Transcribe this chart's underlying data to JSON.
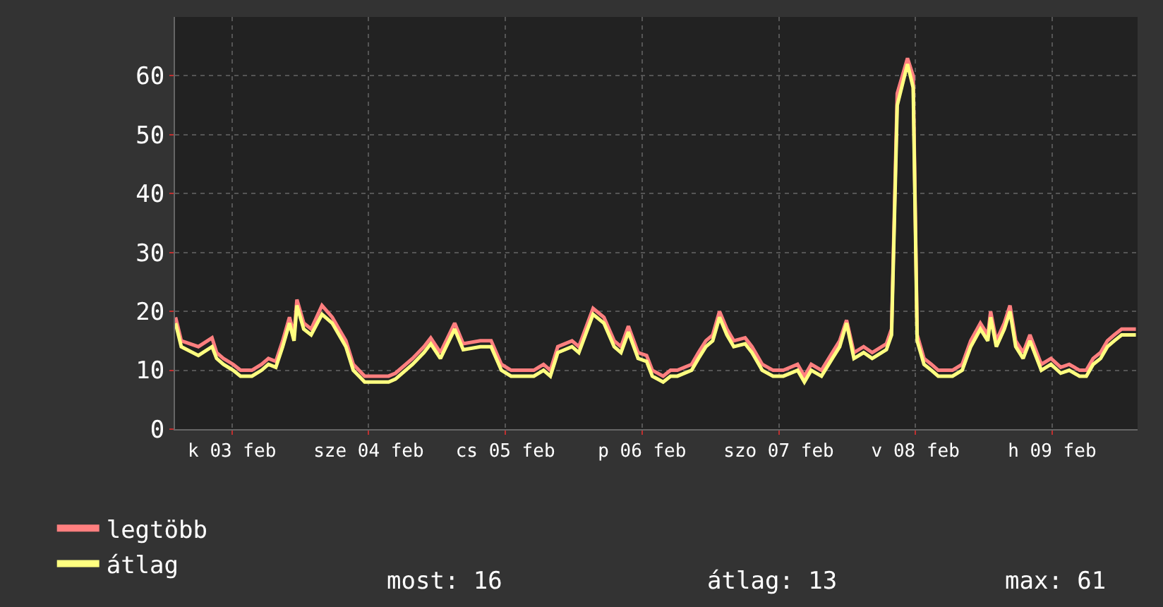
{
  "chart_data": {
    "type": "line",
    "x": [
      "--02-02T14:06",
      "--02-02T15:06",
      "--02-02T18:06",
      "--02-02T20:30",
      "--02-02T21:18",
      "--02-02T22:30",
      "--02-03T00:12",
      "--02-03T01:30",
      "--02-03T03:30",
      "--02-03T05:12",
      "--02-03T06:24",
      "--02-03T07:42",
      "--02-03T08:54",
      "--02-03T10:06",
      "--02-03T10:54",
      "--02-03T11:24",
      "--02-03T12:36",
      "--02-03T13:54",
      "--02-03T15:48",
      "--02-03T17:36",
      "--02-03T18:48",
      "--02-03T20:00",
      "--02-03T21:18",
      "--02-03T23:18",
      "--02-04T03:30",
      "--02-04T04:42",
      "--02-04T07:42",
      "--02-04T09:42",
      "--02-04T10:54",
      "--02-04T12:36",
      "--02-04T15:06",
      "--02-04T16:36",
      "--02-04T19:36",
      "--02-04T21:30",
      "--02-04T23:18",
      "--02-05T01:00",
      "--02-05T05:00",
      "--02-05T06:42",
      "--02-05T07:54",
      "--02-05T09:12",
      "--02-05T11:42",
      "--02-05T12:54",
      "--02-05T15:24",
      "--02-05T17:18",
      "--02-05T19:06",
      "--02-05T20:18",
      "--02-05T21:36",
      "--02-05T23:18",
      "--02-06T00:48",
      "--02-06T01:48",
      "--02-06T03:42",
      "--02-06T05:00",
      "--02-06T06:12",
      "--02-06T08:42",
      "--02-06T09:54",
      "--02-06T11:12",
      "--02-06T12:24",
      "--02-06T13:36",
      "--02-06T14:54",
      "--02-06T16:06",
      "--02-06T18:06",
      "--02-06T19:18",
      "--02-06T21:06",
      "--02-06T23:00",
      "--02-07T00:48",
      "--02-07T03:18",
      "--02-07T04:30",
      "--02-07T05:42",
      "--02-07T07:30",
      "--02-07T09:24",
      "--02-07T10:42",
      "--02-07T11:54",
      "--02-07T13:12",
      "--02-07T14:54",
      "--02-07T16:24",
      "--02-07T18:54",
      "--02-07T19:48",
      "--02-07T20:48",
      "--02-07T22:36",
      "--02-07T23:36",
      "--02-08T00:18",
      "--02-08T01:30",
      "--02-08T02:48",
      "--02-08T04:00",
      "--02-08T06:30",
      "--02-08T08:12",
      "--02-08T09:42",
      "--02-08T11:24",
      "--02-08T12:42",
      "--02-08T13:12",
      "--02-08T14:12",
      "--02-08T15:36",
      "--02-08T16:36",
      "--02-08T17:36",
      "--02-08T18:54",
      "--02-08T20:06",
      "--02-08T22:06",
      "--02-08T23:48",
      "--02-09T01:30",
      "--02-09T03:00",
      "--02-09T04:48",
      "--02-09T06:00",
      "--02-09T07:12",
      "--02-09T08:30",
      "--02-09T09:42",
      "--02-09T10:54",
      "--02-09T12:12",
      "--02-09T14:42"
    ],
    "series": [
      {
        "name": "legtöbb",
        "color": "#ff7f7f",
        "values": [
          19,
          15,
          14,
          15.5,
          13,
          12,
          11,
          10,
          10,
          11,
          12,
          11.5,
          15,
          19,
          16,
          22,
          18,
          17,
          21,
          19,
          17,
          15,
          11,
          9,
          9,
          9.5,
          12,
          14,
          15.5,
          13,
          18,
          14.5,
          15,
          15,
          11,
          10,
          10,
          11,
          10,
          14,
          15,
          14,
          20.5,
          19,
          15,
          14,
          17.5,
          13,
          12.5,
          10,
          9,
          10,
          10,
          11,
          13,
          15,
          16,
          20,
          17,
          15,
          15.5,
          14,
          11,
          10,
          10,
          11,
          9,
          11,
          10,
          13,
          15,
          18.5,
          13,
          14,
          13,
          14.5,
          17,
          57,
          63,
          60,
          16,
          12,
          11,
          10,
          10,
          11,
          15,
          18,
          16,
          20,
          15,
          18,
          21,
          15,
          13,
          16,
          11,
          12,
          10.5,
          11,
          10,
          10,
          12,
          13,
          15,
          16,
          17,
          17
        ]
      },
      {
        "name": "átlag",
        "color": "#ffff80",
        "values": [
          18,
          14,
          12.5,
          14,
          12,
          11,
          10,
          9,
          9,
          10,
          11,
          10.5,
          14,
          18,
          15,
          21,
          17,
          16,
          19.5,
          18,
          16,
          14,
          10,
          8,
          8,
          8.5,
          11,
          13,
          14.5,
          12,
          17,
          13.5,
          14,
          14,
          10,
          9,
          9,
          10,
          9,
          13,
          14,
          13,
          19.5,
          18,
          14,
          13,
          16.5,
          12,
          11.5,
          9,
          8,
          9,
          9,
          10,
          12,
          14,
          15,
          19,
          16,
          14,
          14.5,
          13,
          10,
          9,
          9,
          10,
          8,
          10,
          9,
          12,
          14,
          18,
          12,
          13,
          12,
          13.5,
          16,
          55,
          62,
          58,
          15,
          11,
          10,
          9,
          9,
          10,
          14,
          17,
          15,
          19,
          14,
          17,
          20,
          14,
          12,
          15,
          10,
          11,
          9.5,
          10,
          9,
          9,
          11,
          12,
          14,
          15,
          16,
          16
        ]
      }
    ],
    "xlim": [
      "--02-02T14:00",
      "--02-09T15:00"
    ],
    "xticks": [
      {
        "value": "--02-03",
        "label": "k 03 feb"
      },
      {
        "value": "--02-04",
        "label": "sze 04 feb"
      },
      {
        "value": "--02-05",
        "label": "cs 05 feb"
      },
      {
        "value": "--02-06",
        "label": "p 06 feb"
      },
      {
        "value": "--02-07",
        "label": "szo 07 feb"
      },
      {
        "value": "--02-08",
        "label": "v 08 feb"
      },
      {
        "value": "--02-09",
        "label": "h 09 feb"
      }
    ],
    "ylim": [
      0,
      70
    ],
    "yticks": [
      0,
      10,
      20,
      30,
      40,
      50,
      60
    ],
    "grid": true,
    "legend": "bottom left",
    "annotations": [
      "most: 16",
      "átlag: 13",
      "max: 61"
    ]
  }
}
